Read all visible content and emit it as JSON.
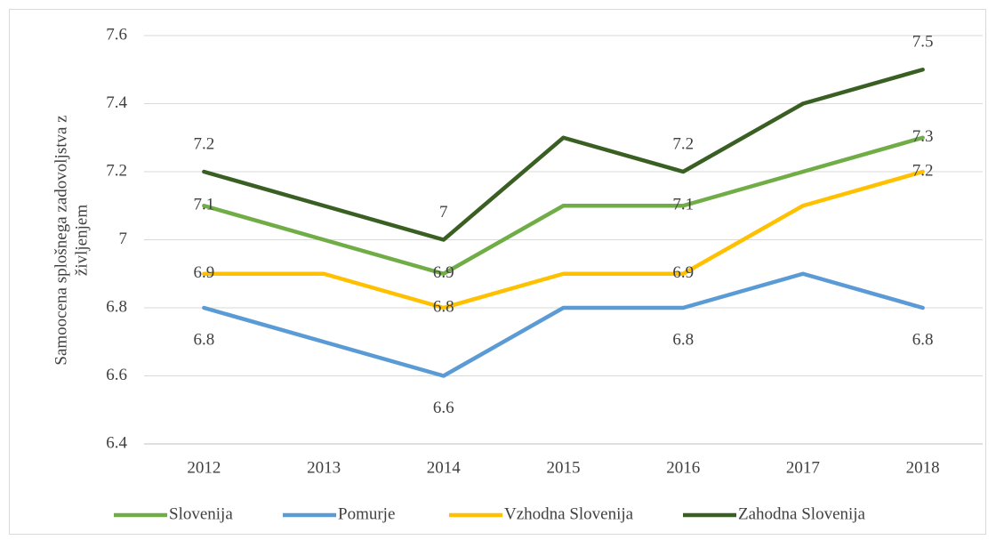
{
  "chart_data": {
    "type": "line",
    "ylabel": [
      "Samoocena splošnega zadovoljstva z",
      "življenjem"
    ],
    "categories": [
      "2012",
      "2013",
      "2014",
      "2015",
      "2016",
      "2017",
      "2018"
    ],
    "series": [
      {
        "name": "Slovenija",
        "color": "#70ad47",
        "values": [
          7.1,
          7.0,
          6.9,
          7.1,
          7.1,
          7.2,
          7.3
        ],
        "value_labels": [
          "7.1",
          null,
          "6.9",
          null,
          "7.1",
          null,
          "7.3"
        ]
      },
      {
        "name": "Pomurje",
        "color": "#5b9bd5",
        "values": [
          6.8,
          6.7,
          6.6,
          6.8,
          6.8,
          6.9,
          6.8
        ],
        "value_labels": [
          "6.8",
          null,
          "6.6",
          null,
          "6.8",
          null,
          "6.8"
        ]
      },
      {
        "name": "Vzhodna Slovenija",
        "color": "#ffc000",
        "values": [
          6.9,
          6.9,
          6.8,
          6.9,
          6.9,
          7.1,
          7.2
        ],
        "value_labels": [
          "6.9",
          null,
          "6.8",
          null,
          "6.9",
          null,
          "7.2"
        ]
      },
      {
        "name": "Zahodna Slovenija",
        "color": "#3a5f23",
        "values": [
          7.2,
          7.1,
          7.0,
          7.3,
          7.2,
          7.4,
          7.5
        ],
        "value_labels": [
          "7.2",
          null,
          "7",
          null,
          "7.2",
          null,
          "7.5"
        ]
      }
    ],
    "ylim": [
      6.4,
      7.6
    ],
    "yticks": [
      6.4,
      6.6,
      6.8,
      7,
      7.2,
      7.4,
      7.6
    ],
    "grid": true,
    "legend": "bottom"
  }
}
